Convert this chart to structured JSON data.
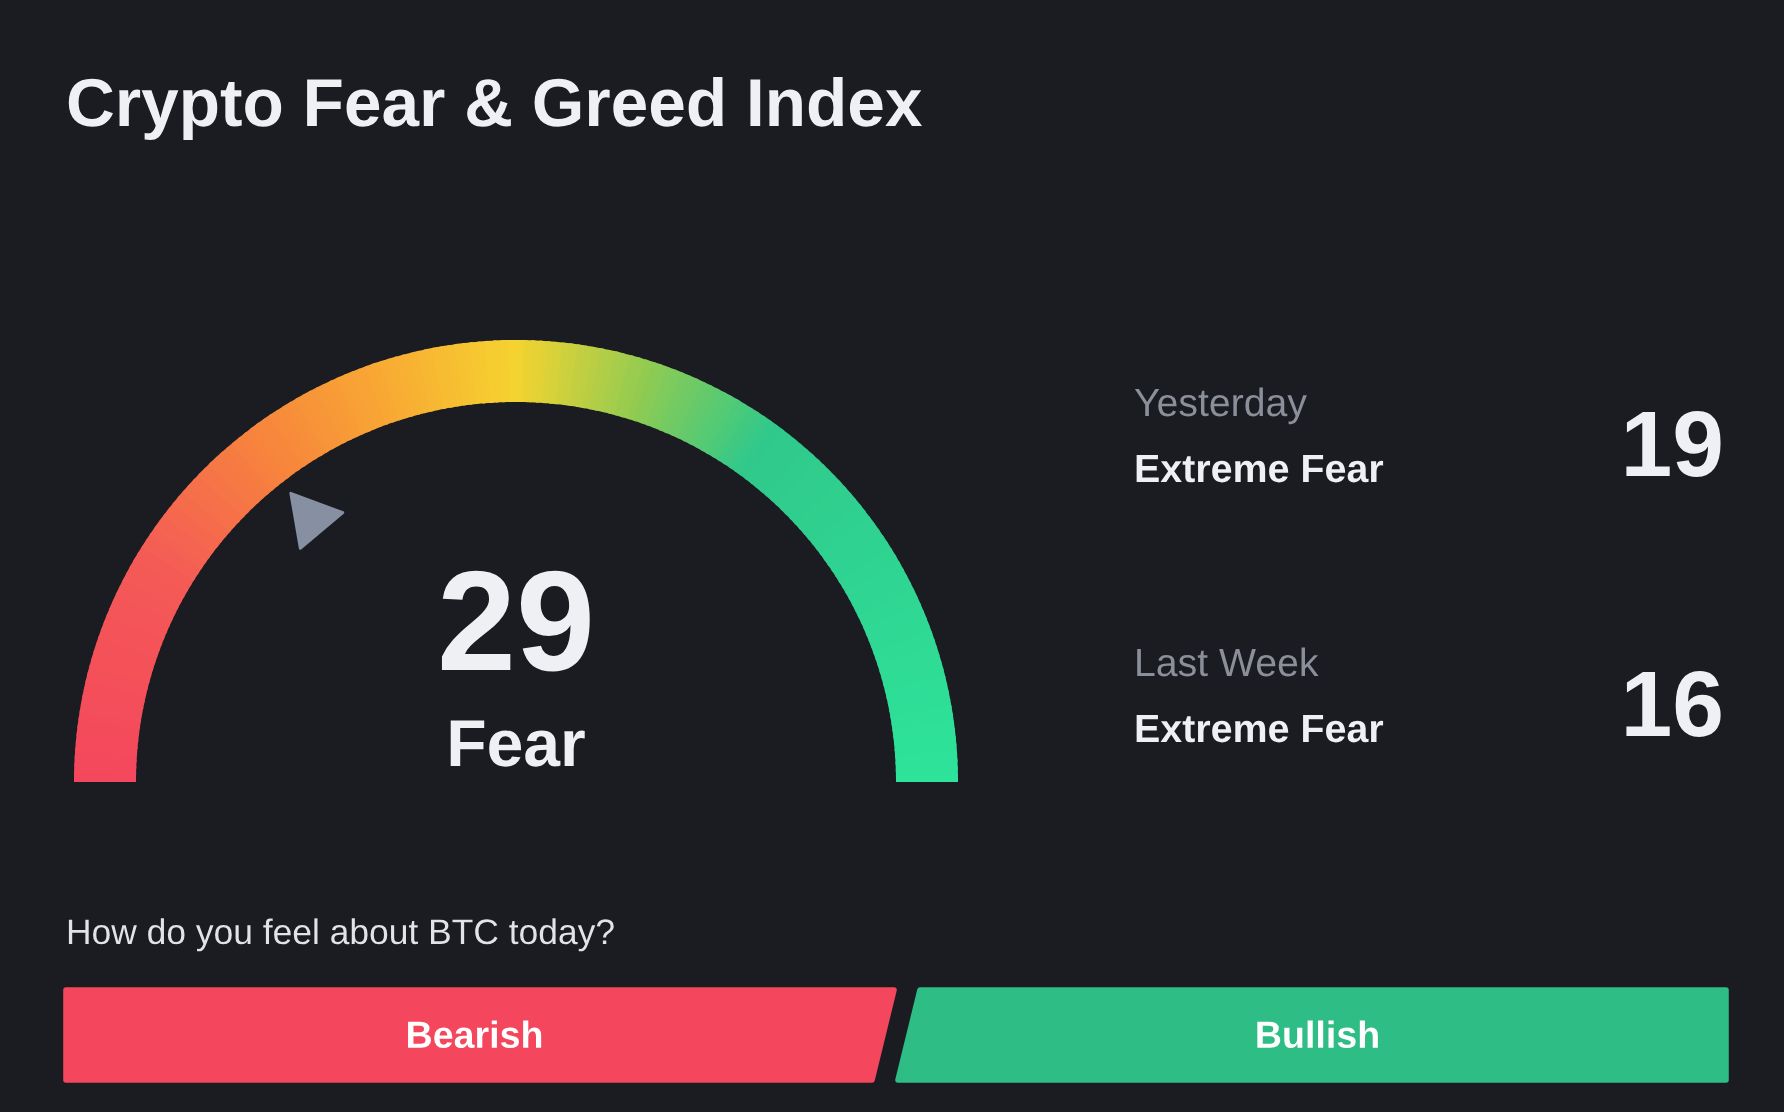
{
  "chart_data": [
    {
      "type": "other",
      "title": "Crypto Fear & Greed Index",
      "categories": [
        "Fear"
      ],
      "values": [
        29
      ],
      "data_labels": true
    },
    {
      "type": "other",
      "categories": [
        "Yesterday",
        "Last Week"
      ],
      "values": [
        19,
        16
      ],
      "data_labels": true,
      "annotations": [
        "Extreme Fear",
        "Extreme Fear"
      ]
    },
    {
      "type": "other",
      "annotations": [
        "How do you feel about BTC today?",
        "Bearish",
        "Bullish"
      ]
    }
  ]
}
